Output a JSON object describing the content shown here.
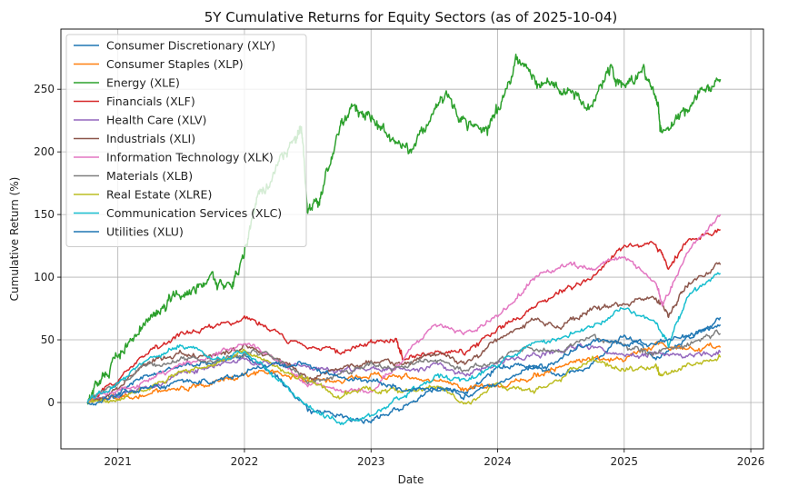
{
  "chart_data": {
    "type": "line",
    "title": "5Y Cumulative Returns for Equity Sectors (as of 2025-10-04)",
    "xlabel": "Date",
    "ylabel": "Cumulative Return (%)",
    "xlim": [
      2020.55,
      2026.1
    ],
    "ylim": [
      -37,
      298
    ],
    "x_ticks": [
      2021,
      2022,
      2023,
      2024,
      2025,
      2026
    ],
    "x_tick_labels": [
      "2021",
      "2022",
      "2023",
      "2024",
      "2025",
      "2026"
    ],
    "y_ticks": [
      0,
      50,
      100,
      150,
      200,
      250
    ],
    "y_tick_labels": [
      "0",
      "50",
      "100",
      "150",
      "200",
      "250"
    ],
    "grid": true,
    "legend_position": "top-left",
    "series": [
      {
        "name": "Consumer Discretionary (XLY)",
        "color": "#1f77b4",
        "x": [
          2020.76,
          2021.0,
          2021.25,
          2021.5,
          2021.75,
          2022.0,
          2022.25,
          2022.5,
          2022.75,
          2023.0,
          2023.25,
          2023.5,
          2023.75,
          2024.0,
          2024.25,
          2024.5,
          2024.75,
          2025.0,
          2025.25,
          2025.5,
          2025.76
        ],
        "y": [
          0,
          8,
          22,
          30,
          32,
          38,
          22,
          -5,
          -10,
          -15,
          -2,
          10,
          8,
          28,
          30,
          22,
          30,
          55,
          35,
          50,
          68
        ]
      },
      {
        "name": "Consumer Staples (XLP)",
        "color": "#ff7f0e",
        "x": [
          2020.76,
          2021.0,
          2021.25,
          2021.5,
          2021.75,
          2022.0,
          2022.25,
          2022.5,
          2022.75,
          2023.0,
          2023.25,
          2023.5,
          2023.75,
          2024.0,
          2024.25,
          2024.5,
          2024.75,
          2025.0,
          2025.25,
          2025.5,
          2025.76
        ],
        "y": [
          0,
          4,
          8,
          12,
          14,
          22,
          24,
          18,
          16,
          22,
          20,
          18,
          10,
          14,
          20,
          28,
          36,
          34,
          46,
          44,
          44
        ]
      },
      {
        "name": "Energy (XLE)",
        "color": "#2ca02c",
        "x": [
          2020.76,
          2020.85,
          2021.0,
          2021.15,
          2021.3,
          2021.45,
          2021.6,
          2021.75,
          2021.9,
          2022.0,
          2022.1,
          2022.25,
          2022.4,
          2022.45,
          2022.5,
          2022.6,
          2022.75,
          2022.85,
          2023.0,
          2023.15,
          2023.3,
          2023.45,
          2023.6,
          2023.75,
          2023.9,
          2024.0,
          2024.15,
          2024.3,
          2024.45,
          2024.6,
          2024.75,
          2024.9,
          2025.0,
          2025.15,
          2025.25,
          2025.3,
          2025.45,
          2025.6,
          2025.76
        ],
        "y": [
          0,
          15,
          32,
          55,
          75,
          88,
          85,
          102,
          92,
          120,
          160,
          185,
          210,
          222,
          152,
          165,
          215,
          238,
          225,
          210,
          200,
          225,
          245,
          220,
          215,
          235,
          272,
          255,
          250,
          245,
          240,
          268,
          250,
          265,
          248,
          210,
          228,
          250,
          258
        ]
      },
      {
        "name": "Financials (XLF)",
        "color": "#d62728",
        "x": [
          2020.76,
          2021.0,
          2021.25,
          2021.5,
          2021.75,
          2022.0,
          2022.25,
          2022.5,
          2022.75,
          2023.0,
          2023.2,
          2023.25,
          2023.5,
          2023.75,
          2024.0,
          2024.25,
          2024.5,
          2024.75,
          2025.0,
          2025.25,
          2025.35,
          2025.5,
          2025.76
        ],
        "y": [
          0,
          18,
          40,
          55,
          60,
          68,
          55,
          42,
          40,
          48,
          52,
          35,
          40,
          40,
          58,
          72,
          90,
          100,
          125,
          128,
          105,
          130,
          138
        ]
      },
      {
        "name": "Health Care (XLV)",
        "color": "#9467bd",
        "x": [
          2020.76,
          2021.0,
          2021.25,
          2021.5,
          2021.75,
          2022.0,
          2022.25,
          2022.5,
          2022.75,
          2023.0,
          2023.25,
          2023.5,
          2023.75,
          2024.0,
          2024.25,
          2024.5,
          2024.75,
          2025.0,
          2025.25,
          2025.5,
          2025.76
        ],
        "y": [
          0,
          6,
          12,
          22,
          28,
          35,
          30,
          28,
          25,
          28,
          25,
          30,
          22,
          30,
          38,
          42,
          45,
          38,
          40,
          36,
          40
        ]
      },
      {
        "name": "Industrials (XLI)",
        "color": "#8c564b",
        "x": [
          2020.76,
          2021.0,
          2021.25,
          2021.5,
          2021.75,
          2022.0,
          2022.25,
          2022.5,
          2022.75,
          2023.0,
          2023.25,
          2023.5,
          2023.75,
          2024.0,
          2024.25,
          2024.5,
          2024.75,
          2025.0,
          2025.25,
          2025.35,
          2025.5,
          2025.76
        ],
        "y": [
          0,
          12,
          32,
          40,
          38,
          45,
          35,
          20,
          25,
          32,
          30,
          40,
          30,
          50,
          65,
          60,
          75,
          78,
          85,
          70,
          95,
          110
        ]
      },
      {
        "name": "Information Technology (XLK)",
        "color": "#e377c2",
        "x": [
          2020.76,
          2021.0,
          2021.25,
          2021.5,
          2021.75,
          2022.0,
          2022.25,
          2022.5,
          2022.75,
          2023.0,
          2023.25,
          2023.5,
          2023.75,
          2024.0,
          2024.25,
          2024.5,
          2024.75,
          2025.0,
          2025.25,
          2025.3,
          2025.5,
          2025.76
        ],
        "y": [
          0,
          10,
          18,
          30,
          38,
          48,
          35,
          15,
          10,
          8,
          35,
          62,
          55,
          68,
          95,
          110,
          105,
          118,
          95,
          78,
          120,
          150
        ]
      },
      {
        "name": "Materials (XLB)",
        "color": "#7f7f7f",
        "x": [
          2020.76,
          2021.0,
          2021.25,
          2021.5,
          2021.75,
          2022.0,
          2022.25,
          2022.5,
          2022.75,
          2023.0,
          2023.25,
          2023.5,
          2023.75,
          2024.0,
          2024.25,
          2024.5,
          2024.75,
          2025.0,
          2025.25,
          2025.5,
          2025.76
        ],
        "y": [
          0,
          15,
          30,
          35,
          32,
          40,
          38,
          18,
          22,
          30,
          28,
          35,
          25,
          35,
          45,
          40,
          52,
          45,
          40,
          48,
          55
        ]
      },
      {
        "name": "Real Estate (XLRE)",
        "color": "#bcbd22",
        "x": [
          2020.76,
          2021.0,
          2021.25,
          2021.5,
          2021.75,
          2022.0,
          2022.25,
          2022.5,
          2022.75,
          2023.0,
          2023.25,
          2023.5,
          2023.75,
          2024.0,
          2024.25,
          2024.5,
          2024.75,
          2025.0,
          2025.25,
          2025.3,
          2025.5,
          2025.76
        ],
        "y": [
          0,
          2,
          12,
          25,
          30,
          42,
          28,
          18,
          5,
          12,
          8,
          12,
          0,
          15,
          10,
          18,
          35,
          25,
          28,
          20,
          30,
          36
        ]
      },
      {
        "name": "Communication Services (XLC)",
        "color": "#17becf",
        "x": [
          2020.76,
          2021.0,
          2021.25,
          2021.5,
          2021.75,
          2022.0,
          2022.25,
          2022.5,
          2022.75,
          2023.0,
          2023.25,
          2023.5,
          2023.75,
          2024.0,
          2024.25,
          2024.5,
          2024.75,
          2025.0,
          2025.25,
          2025.35,
          2025.5,
          2025.76
        ],
        "y": [
          0,
          15,
          35,
          45,
          38,
          40,
          20,
          -5,
          -15,
          -10,
          5,
          20,
          18,
          30,
          45,
          50,
          60,
          75,
          65,
          45,
          85,
          103
        ]
      },
      {
        "name": "Utilities (XLU)",
        "color": "#1f77b4",
        "x": [
          2020.76,
          2021.0,
          2021.25,
          2021.5,
          2021.75,
          2022.0,
          2022.25,
          2022.5,
          2022.75,
          2023.0,
          2023.25,
          2023.5,
          2023.75,
          2024.0,
          2024.25,
          2024.5,
          2024.75,
          2025.0,
          2025.25,
          2025.5,
          2025.76
        ],
        "y": [
          0,
          5,
          12,
          18,
          15,
          25,
          32,
          30,
          20,
          18,
          10,
          12,
          5,
          15,
          25,
          35,
          50,
          45,
          48,
          52,
          62
        ]
      }
    ]
  }
}
